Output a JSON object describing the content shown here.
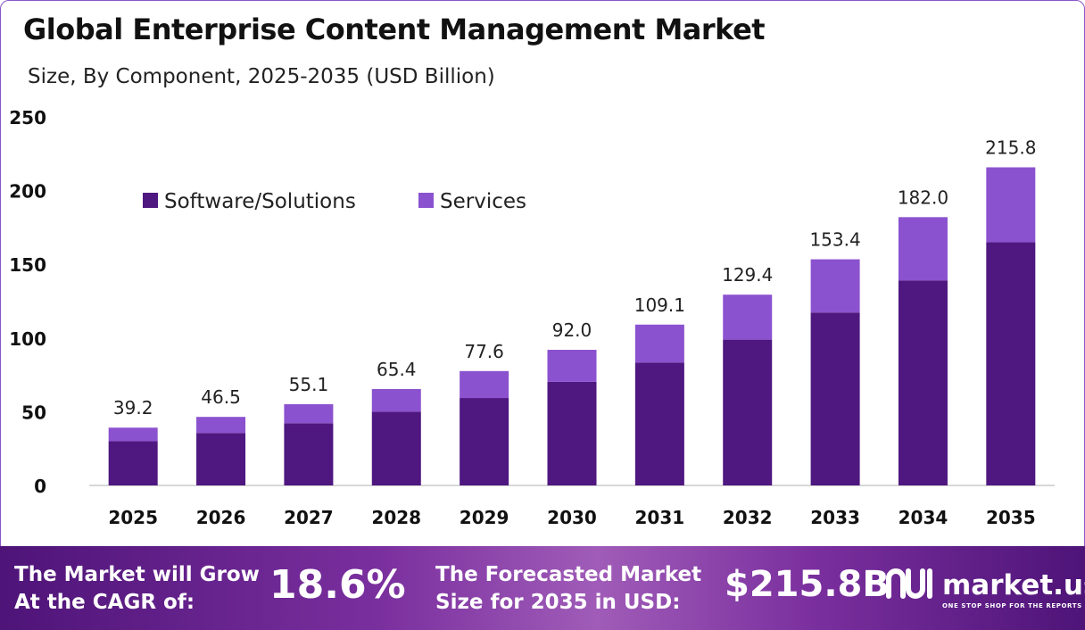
{
  "title": "Global Enterprise Content Management Market",
  "subtitle": "Size, By Component, 2025-2035 (USD Billion)",
  "colors": {
    "software": "#4f1780",
    "services": "#8b52cf",
    "axis": "#cccccc"
  },
  "chart_data": {
    "type": "bar",
    "stacked": true,
    "categories": [
      "2025",
      "2026",
      "2027",
      "2028",
      "2029",
      "2030",
      "2031",
      "2032",
      "2033",
      "2034",
      "2035"
    ],
    "series": [
      {
        "name": "Software/Solutions",
        "values": [
          30.0,
          35.6,
          42.2,
          50.0,
          59.3,
          70.3,
          83.4,
          98.9,
          117.3,
          139.1,
          165.0
        ]
      },
      {
        "name": "Services",
        "values": [
          9.2,
          10.9,
          12.9,
          15.4,
          18.3,
          21.7,
          25.7,
          30.5,
          36.1,
          42.9,
          50.8
        ]
      }
    ],
    "totals": [
      "39.2",
      "46.5",
      "55.1",
      "65.4",
      "77.6",
      "92.0",
      "109.1",
      "129.4",
      "153.4",
      "182.0",
      "215.8"
    ],
    "ylim": [
      0,
      250
    ],
    "yticks": [
      "0",
      "50",
      "100",
      "150",
      "200",
      "250"
    ],
    "xlabel": "",
    "ylabel": "",
    "legend": "top-left",
    "grid": false
  },
  "footer": {
    "cagr_text": "The Market will Grow\nAt the CAGR of:",
    "cagr_value": "18.6%",
    "forecast_text": "The Forecasted Market\nSize for 2035 in USD:",
    "forecast_value": "$215.8B",
    "brand": "market.us",
    "tagline": "ONE STOP SHOP FOR THE REPORTS"
  }
}
